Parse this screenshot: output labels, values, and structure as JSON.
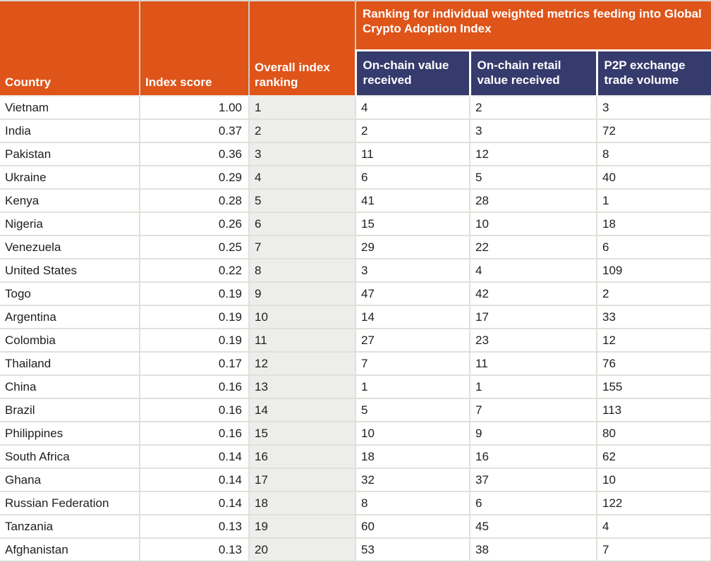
{
  "chart_data": {
    "type": "table",
    "title": "Ranking for individual weighted metrics feeding into Global Crypto Adoption Index",
    "columns": [
      "Country",
      "Index score",
      "Overall index ranking",
      "On-chain value received",
      "On-chain retail value received",
      "P2P exchange trade volume"
    ],
    "rows": [
      [
        "Vietnam",
        "1.00",
        "1",
        "4",
        "2",
        "3"
      ],
      [
        "India",
        "0.37",
        "2",
        "2",
        "3",
        "72"
      ],
      [
        "Pakistan",
        "0.36",
        "3",
        "11",
        "12",
        "8"
      ],
      [
        "Ukraine",
        "0.29",
        "4",
        "6",
        "5",
        "40"
      ],
      [
        "Kenya",
        "0.28",
        "5",
        "41",
        "28",
        "1"
      ],
      [
        "Nigeria",
        "0.26",
        "6",
        "15",
        "10",
        "18"
      ],
      [
        "Venezuela",
        "0.25",
        "7",
        "29",
        "22",
        "6"
      ],
      [
        "United States",
        "0.22",
        "8",
        "3",
        "4",
        "109"
      ],
      [
        "Togo",
        "0.19",
        "9",
        "47",
        "42",
        "2"
      ],
      [
        "Argentina",
        "0.19",
        "10",
        "14",
        "17",
        "33"
      ],
      [
        "Colombia",
        "0.19",
        "11",
        "27",
        "23",
        "12"
      ],
      [
        "Thailand",
        "0.17",
        "12",
        "7",
        "11",
        "76"
      ],
      [
        "China",
        "0.16",
        "13",
        "1",
        "1",
        "155"
      ],
      [
        "Brazil",
        "0.16",
        "14",
        "5",
        "7",
        "113"
      ],
      [
        "Philippines",
        "0.16",
        "15",
        "10",
        "9",
        "80"
      ],
      [
        "South Africa",
        "0.14",
        "16",
        "18",
        "16",
        "62"
      ],
      [
        "Ghana",
        "0.14",
        "17",
        "32",
        "37",
        "10"
      ],
      [
        "Russian Federation",
        "0.14",
        "18",
        "8",
        "6",
        "122"
      ],
      [
        "Tanzania",
        "0.13",
        "19",
        "60",
        "45",
        "4"
      ],
      [
        "Afghanistan",
        "0.13",
        "20",
        "53",
        "38",
        "7"
      ]
    ],
    "layout": {
      "header_rows": 2,
      "grid": true,
      "banner_spans_columns": [
        "On-chain value received",
        "On-chain retail value received",
        "P2P exchange trade volume"
      ],
      "shaded_column": "Overall index ranking",
      "right_aligned_column": "Index score"
    }
  },
  "colors": {
    "header_orange": "#DE5419",
    "header_navy": "#363B6D",
    "ranking_column_bg": "#EDEDEB",
    "grid_line": "#E0E0DB",
    "body_text": "#1E1E1E",
    "header_text": "#FFFFFF"
  }
}
